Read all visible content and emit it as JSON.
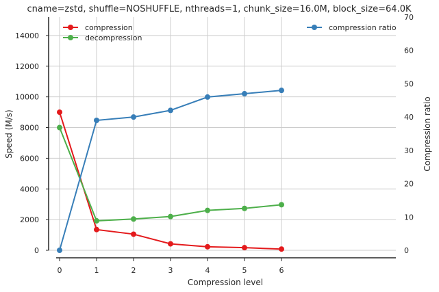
{
  "chart_data": {
    "type": "line",
    "title": "cname=zstd, shuffle=NOSHUFFLE, nthreads=1, chunk_size=16.0M, block_size=64.0K",
    "xlabel": "Compression level",
    "ylabel": "Speed (M/s)",
    "y2label": "Compression ratio",
    "x": [
      0,
      1,
      2,
      3,
      4,
      5,
      6
    ],
    "xticks": [
      "0",
      "1",
      "2",
      "3",
      "4",
      "5",
      "6"
    ],
    "ylim": [
      0,
      15200
    ],
    "yticks": [
      "0",
      "2000",
      "4000",
      "6000",
      "8000",
      "10000",
      "12000",
      "14000"
    ],
    "y2lim": [
      0,
      70
    ],
    "y2ticks": [
      "0",
      "10",
      "20",
      "30",
      "40",
      "50",
      "60",
      "70"
    ],
    "grid": true,
    "series": [
      {
        "name": "compression",
        "axis": "left",
        "color": "#e41a1c",
        "values": [
          9000,
          1350,
          1050,
          420,
          230,
          170,
          80
        ]
      },
      {
        "name": "decompression",
        "axis": "left",
        "color": "#4daf4a",
        "values": [
          8000,
          1920,
          2040,
          2200,
          2600,
          2730,
          2970
        ]
      },
      {
        "name": "compression ratio",
        "axis": "right",
        "color": "#377eb8",
        "values": [
          0,
          39,
          40,
          42,
          46,
          47,
          48
        ]
      }
    ],
    "legends": [
      {
        "position": "top-left",
        "entries": [
          "compression",
          "decompression"
        ]
      },
      {
        "position": "top-right",
        "entries": [
          "compression ratio"
        ]
      }
    ]
  }
}
